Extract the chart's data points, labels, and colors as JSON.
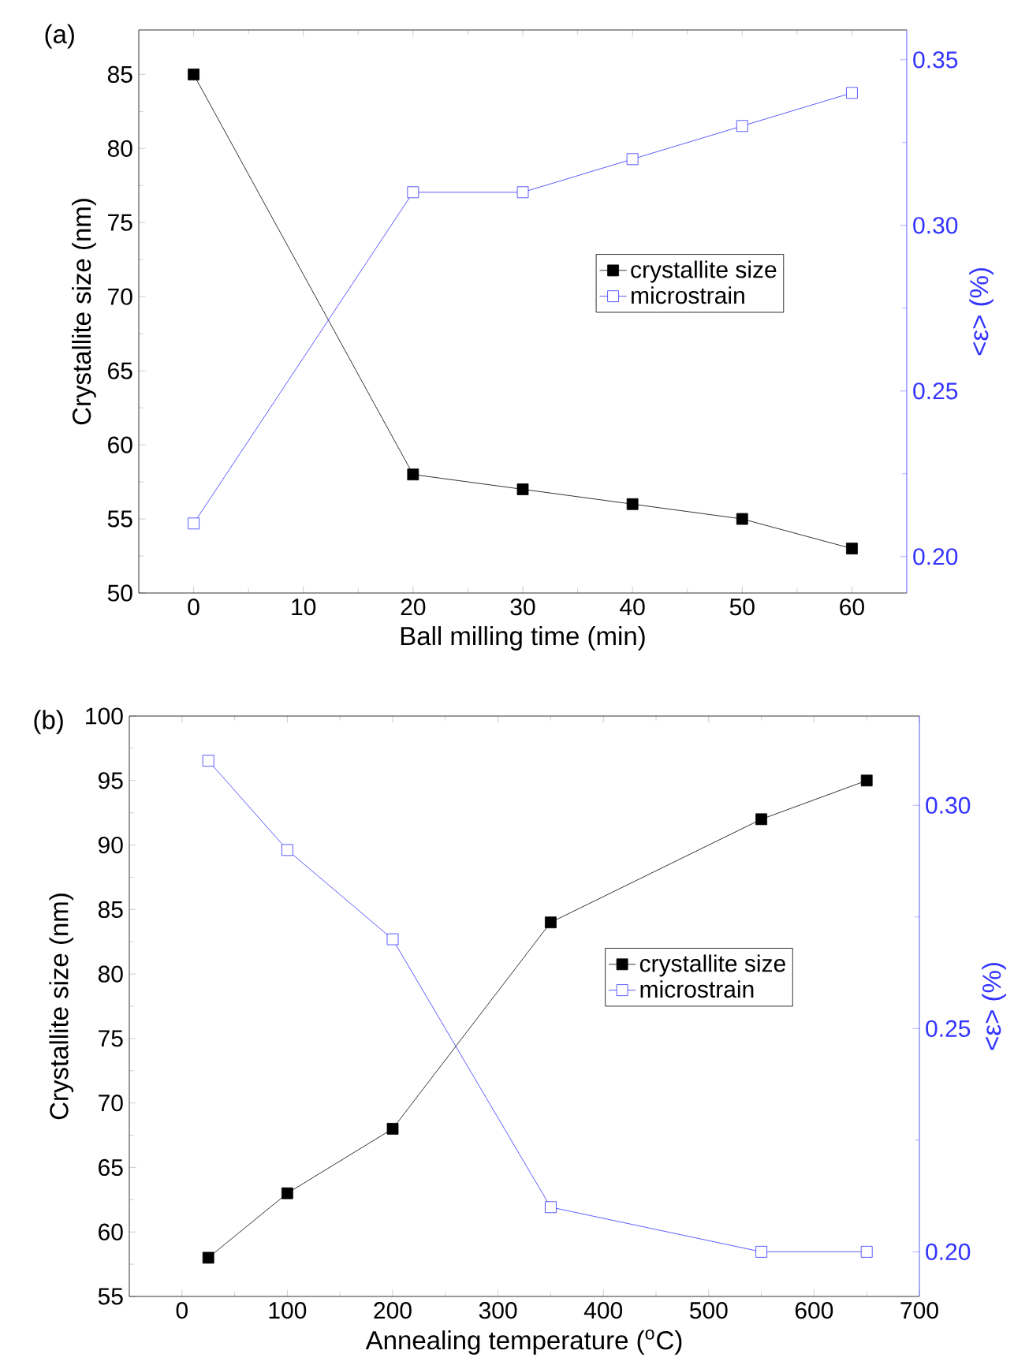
{
  "chart_data": [
    {
      "type": "line",
      "annotations": [
        "(a)"
      ],
      "xlabel": "Ball milling time (min)",
      "ylabel": "Crystallite size (nm)",
      "y2label": "<ε> (%)",
      "x": [
        0,
        20,
        30,
        40,
        50,
        60
      ],
      "xlim": [
        -5,
        65
      ],
      "xticks": [
        0,
        10,
        20,
        30,
        40,
        50,
        60
      ],
      "ylim": [
        50,
        88
      ],
      "yticks": [
        50,
        55,
        60,
        65,
        70,
        75,
        80,
        85
      ],
      "y2lim": [
        0.189,
        0.359
      ],
      "y2ticks": [
        {
          "value": 0.2,
          "label": "0.20"
        },
        {
          "value": 0.25,
          "label": "0.25"
        },
        {
          "value": 0.3,
          "label": "0.30"
        },
        {
          "value": 0.35,
          "label": "0.35"
        }
      ],
      "marker": "square",
      "legend": "right",
      "series": [
        {
          "name": "crystallite size",
          "color": "#000000",
          "values": [
            85,
            58,
            57,
            56,
            55,
            53
          ]
        },
        {
          "name": "microstrain",
          "color": "#3333ff",
          "axis": "y2",
          "values": [
            0.21,
            0.31,
            0.31,
            0.32,
            0.33,
            0.34
          ]
        }
      ]
    },
    {
      "type": "line",
      "annotations": [
        "(b)"
      ],
      "xlabel": "Annealing temperature ($^{o}$C)",
      "ylabel": "Crystallite size (nm)",
      "y2label": "<ε> (%)",
      "x": [
        25,
        100,
        200,
        350,
        550,
        650
      ],
      "xlim": [
        -50,
        700
      ],
      "xticks": [
        0,
        100,
        200,
        300,
        400,
        500,
        600,
        700
      ],
      "ylim": [
        55,
        100
      ],
      "yticks": [
        55,
        60,
        65,
        70,
        75,
        80,
        85,
        90,
        95,
        100
      ],
      "y2lim": [
        0.19,
        0.32
      ],
      "y2ticks": [
        {
          "value": 0.2,
          "label": "0.20"
        },
        {
          "value": 0.25,
          "label": "0.25"
        },
        {
          "value": 0.3,
          "label": "0.30"
        }
      ],
      "marker": "square",
      "legend": "right",
      "series": [
        {
          "name": "crystallite size",
          "color": "#000000",
          "values": [
            58,
            63,
            68,
            84,
            92,
            95
          ]
        },
        {
          "name": "microstrain",
          "color": "#3333ff",
          "axis": "y2",
          "values": [
            0.31,
            0.29,
            0.27,
            0.21,
            0.2,
            0.2
          ]
        }
      ]
    }
  ]
}
